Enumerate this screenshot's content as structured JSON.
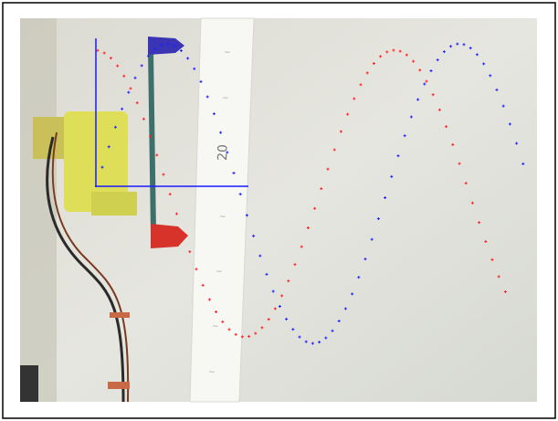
{
  "image": {
    "ruler_label": "20"
  }
}
